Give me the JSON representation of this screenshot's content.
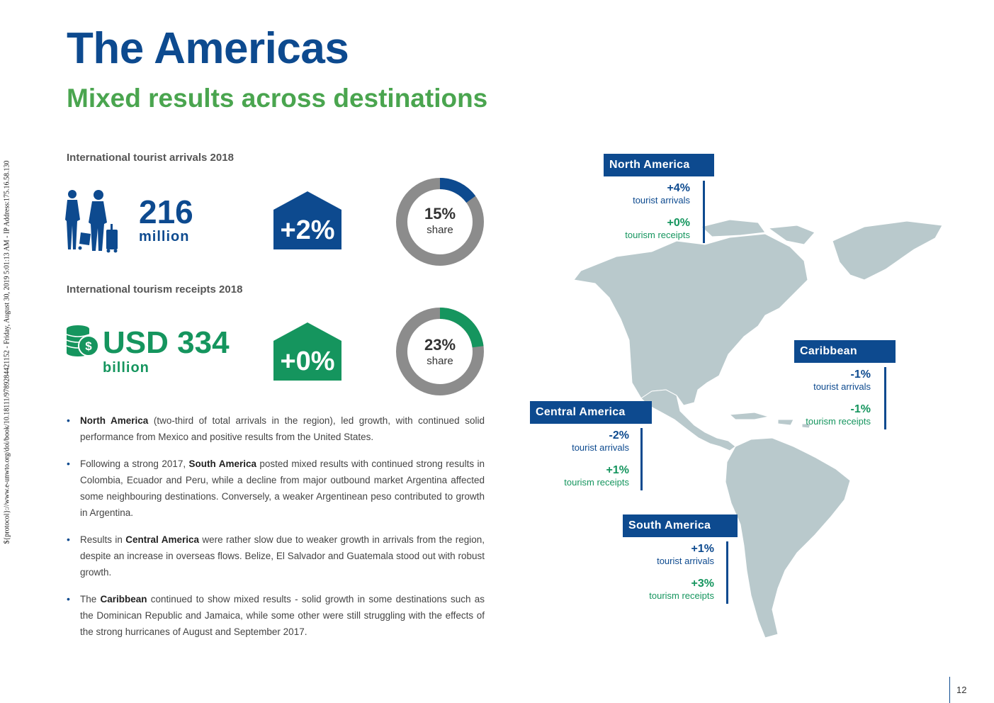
{
  "sidebar": {
    "text": "${protocol}://www.e-unwto.org/doi/book/10.18111/9789284421152 - Friday, August 30, 2019 5:01:13 AM - IP Address:175.16.58.130"
  },
  "header": {
    "title": "The Americas",
    "subtitle": "Mixed results across destinations"
  },
  "arrivals": {
    "label": "International tourist arrivals 2018",
    "value": "216",
    "unit": "million",
    "change": "+2%",
    "share_pct": "15%",
    "share_word": "share",
    "share_fraction": 0.15,
    "icon": "travelers-icon"
  },
  "receipts": {
    "label": "International tourism receipts 2018",
    "value": "USD 334",
    "unit": "billion",
    "change": "+0%",
    "share_pct": "23%",
    "share_word": "share",
    "share_fraction": 0.23,
    "icon": "coins-dollar-icon"
  },
  "bullets": [
    {
      "bold": "North America",
      "pre": "",
      "post": " (two-third of total arrivals in the region), led growth, with continued solid performance from Mexico and positive results from the United States."
    },
    {
      "pre": "Following a strong 2017, ",
      "bold": "South America",
      "post": " posted mixed results with continued strong results in Colombia, Ecuador and Peru, while a decline from major outbound market Argentina affected some neighbouring destinations. Conversely, a weaker Argentinean peso contributed to growth in Argentina."
    },
    {
      "pre": "Results in ",
      "bold": "Central America",
      "post": " were rather slow due to weaker growth in arrivals from the region, despite an increase in overseas flows. Belize, El Salvador and Guatemala stood out with robust growth."
    },
    {
      "pre": "The ",
      "bold": "Caribbean",
      "post": " continued to show mixed results - solid growth in some destinations such as the Dominican Republic and Jamaica, while some other were still struggling with the effects of the strong hurricanes of August and September 2017."
    }
  ],
  "regions": {
    "north_america": {
      "name": "North America",
      "arrivals": "+4%",
      "arrivals_label": "tourist arrivals",
      "receipts": "+0%",
      "receipts_label": "tourism receipts"
    },
    "caribbean": {
      "name": "Caribbean",
      "arrivals": "-1%",
      "arrivals_label": "tourist arrivals",
      "receipts": "-1%",
      "receipts_label": "tourism receipts"
    },
    "central_america": {
      "name": "Central America",
      "arrivals": "-2%",
      "arrivals_label": "tourist arrivals",
      "receipts": "+1%",
      "receipts_label": "tourism receipts"
    },
    "south_america": {
      "name": "South America",
      "arrivals": "+1%",
      "arrivals_label": "tourist arrivals",
      "receipts": "+3%",
      "receipts_label": "tourism receipts"
    }
  },
  "colors": {
    "blue": "#0d4a8f",
    "green": "#15955e",
    "title_green": "#4aa54f",
    "donut_grey": "#8c8c8c",
    "map": "#b9c9cc"
  },
  "footer": {
    "page_number": "12"
  }
}
